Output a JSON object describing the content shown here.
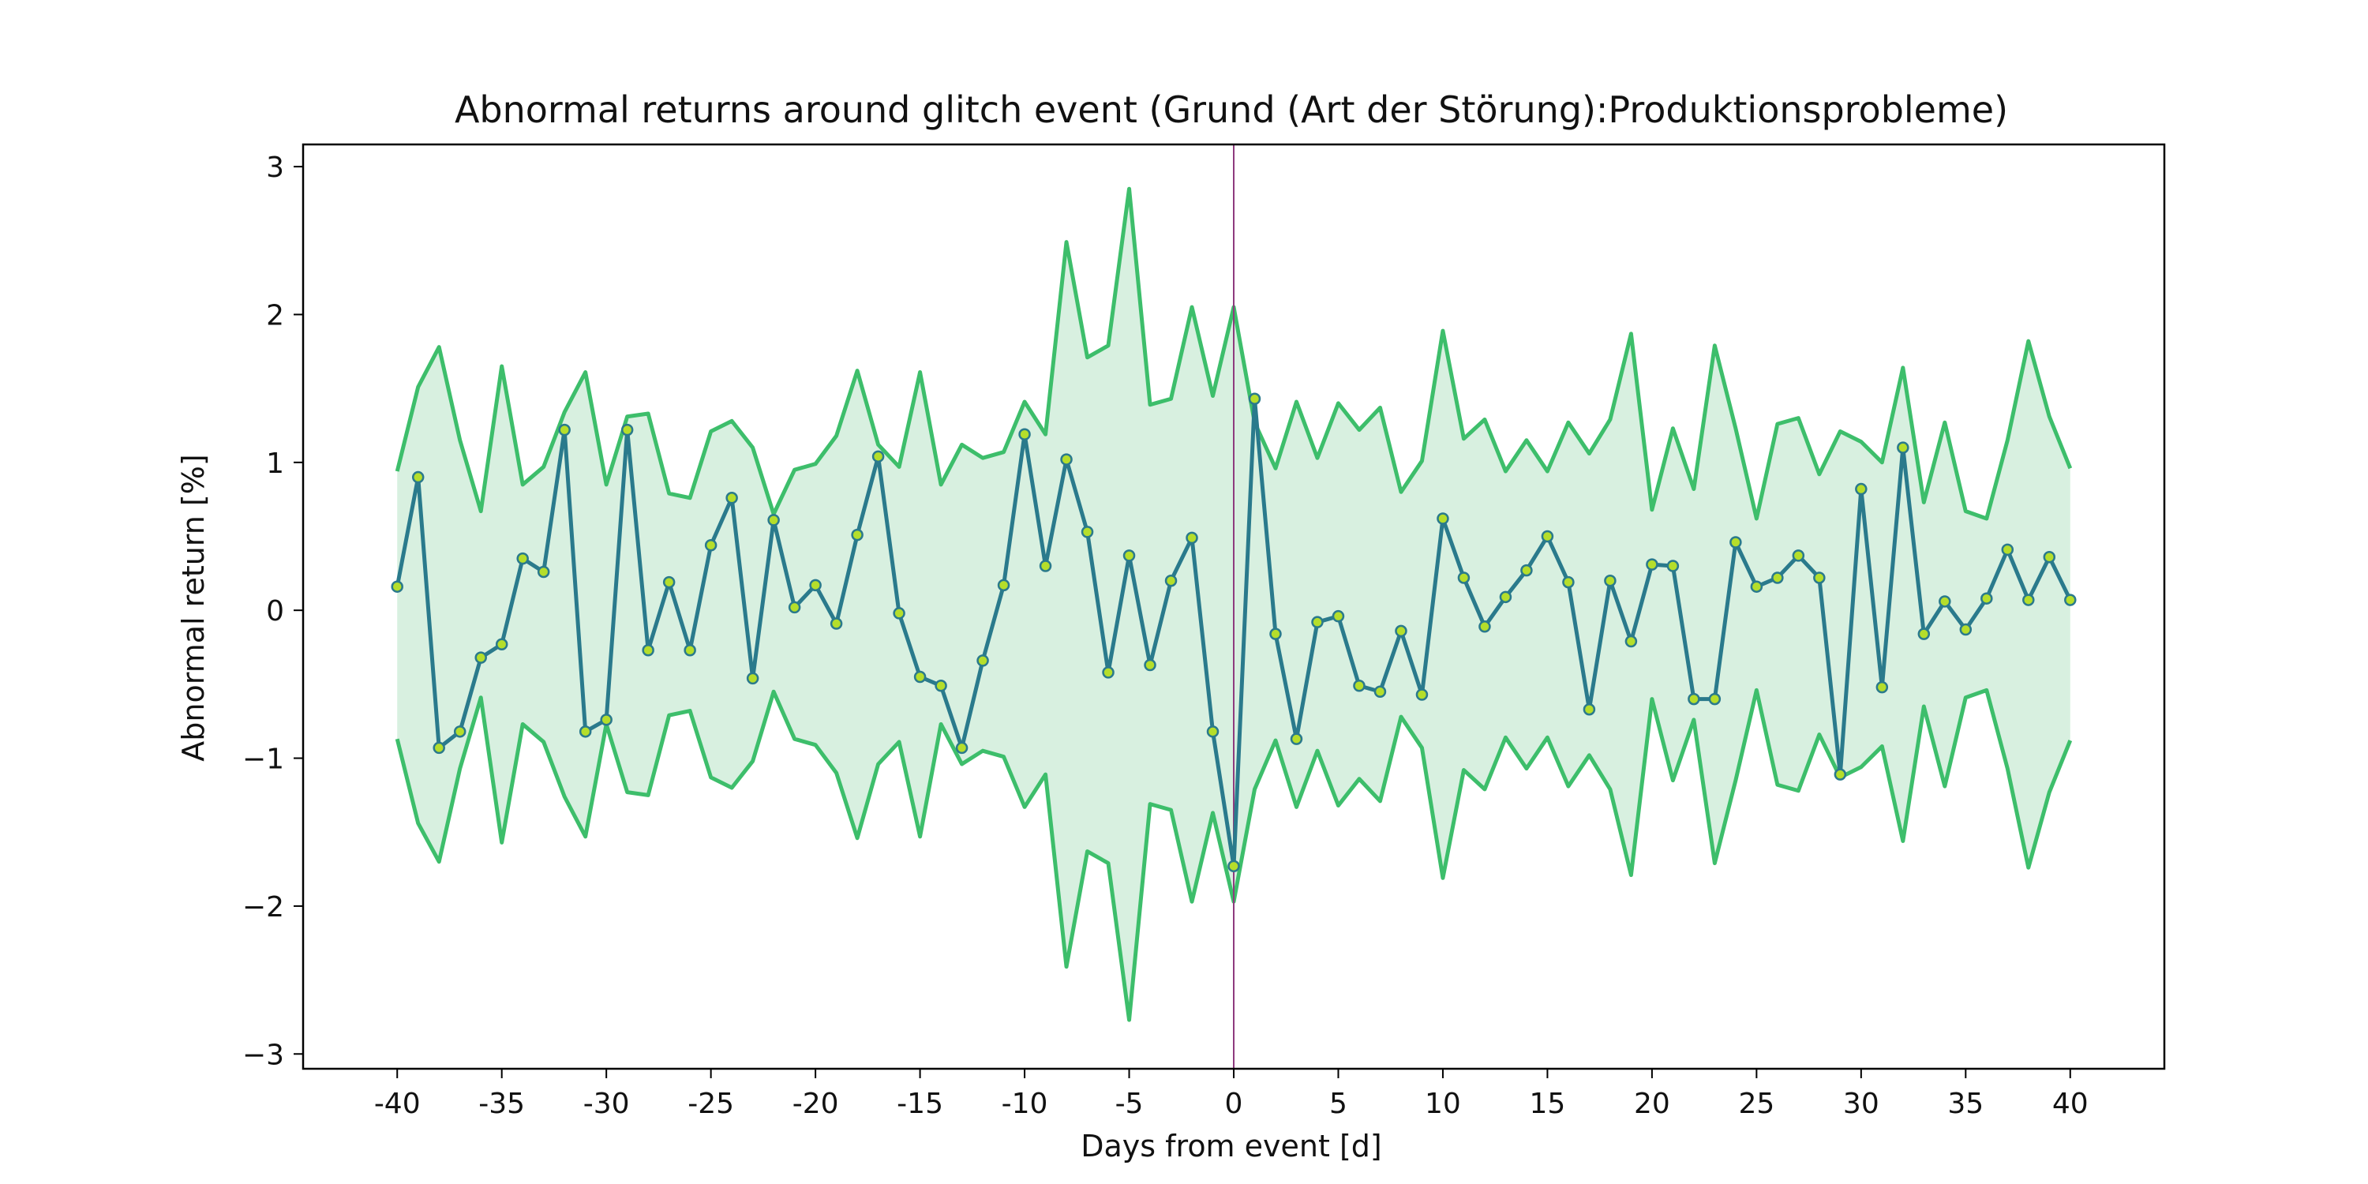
{
  "chart_data": {
    "type": "line",
    "title": "Abnormal returns around glitch event (Grund (Art der Störung):Produktionsprobleme)",
    "xlabel": "Days from event [d]",
    "ylabel": "Abnormal return [%]",
    "xlim": [
      -44.5,
      44.5
    ],
    "ylim": [
      -3.1,
      3.15
    ],
    "x_ticks": [
      -40,
      -35,
      -30,
      -25,
      -20,
      -15,
      -10,
      -5,
      0,
      5,
      10,
      15,
      20,
      25,
      30,
      35,
      40
    ],
    "x_tick_labels": [
      "-40",
      "-35",
      "-30",
      "-25",
      "-20",
      "-15",
      "-10",
      "-5",
      "0",
      "5",
      "10",
      "15",
      "20",
      "25",
      "30",
      "35",
      "40"
    ],
    "y_ticks": [
      -3,
      -2,
      -1,
      0,
      1,
      2,
      3
    ],
    "y_tick_labels": [
      "−3",
      "−2",
      "−1",
      "0",
      "1",
      "2",
      "3"
    ],
    "event_line_x": 0,
    "colors": {
      "mean_line": "#2a7a8c",
      "marker_fill": "#b5de2b",
      "band_line": "#3dbe6b",
      "band_fill": "#d8f0e0",
      "event_line": "#8e3b7e",
      "axes": "#000000"
    },
    "x": [
      -40,
      -39,
      -38,
      -37,
      -36,
      -35,
      -34,
      -33,
      -32,
      -31,
      -30,
      -29,
      -28,
      -27,
      -26,
      -25,
      -24,
      -23,
      -22,
      -21,
      -20,
      -19,
      -18,
      -17,
      -16,
      -15,
      -14,
      -13,
      -12,
      -11,
      -10,
      -9,
      -8,
      -7,
      -6,
      -5,
      -4,
      -3,
      -2,
      -1,
      0,
      1,
      2,
      3,
      4,
      5,
      6,
      7,
      8,
      9,
      10,
      11,
      12,
      13,
      14,
      15,
      16,
      17,
      18,
      19,
      20,
      21,
      22,
      23,
      24,
      25,
      26,
      27,
      28,
      29,
      30,
      31,
      32,
      33,
      34,
      35,
      36,
      37,
      38,
      39,
      40
    ],
    "series": [
      {
        "role": "mean",
        "values": [
          0.16,
          0.9,
          -0.93,
          -0.82,
          -0.32,
          -0.23,
          0.35,
          0.26,
          1.22,
          -0.82,
          -0.74,
          1.22,
          -0.27,
          0.19,
          -0.27,
          0.44,
          0.76,
          -0.46,
          0.61,
          0.02,
          0.17,
          -0.09,
          0.51,
          1.04,
          -0.02,
          -0.45,
          -0.51,
          -0.93,
          -0.34,
          0.17,
          1.19,
          0.3,
          1.02,
          0.53,
          -0.42,
          0.37,
          -0.37,
          0.2,
          0.49,
          -0.82,
          -1.73,
          1.43,
          -0.16,
          -0.87,
          -0.08,
          -0.04,
          -0.51,
          -0.55,
          -0.14,
          -0.57,
          0.62,
          0.22,
          -0.11,
          0.09,
          0.27,
          0.5,
          0.19,
          -0.67,
          0.2,
          -0.21,
          0.31,
          0.3,
          -0.6,
          -0.6,
          0.46,
          0.16,
          0.22,
          0.37,
          0.22,
          -1.11,
          0.82,
          -0.52,
          1.1,
          -0.16,
          0.06,
          -0.13,
          0.08,
          0.41,
          0.07,
          0.36,
          0.07
        ]
      },
      {
        "role": "upper",
        "values": [
          0.94,
          1.51,
          1.78,
          1.15,
          0.67,
          1.65,
          0.85,
          0.97,
          1.34,
          1.61,
          0.85,
          1.31,
          1.33,
          0.79,
          0.76,
          1.21,
          1.28,
          1.1,
          0.65,
          0.95,
          0.99,
          1.18,
          1.62,
          1.12,
          0.97,
          1.61,
          0.85,
          1.12,
          1.03,
          1.07,
          1.41,
          1.19,
          2.49,
          1.71,
          1.79,
          2.85,
          1.39,
          1.43,
          2.05,
          1.45,
          2.05,
          1.27,
          0.96,
          1.41,
          1.03,
          1.4,
          1.22,
          1.37,
          0.8,
          1.01,
          1.89,
          1.16,
          1.29,
          0.94,
          1.15,
          0.94,
          1.27,
          1.06,
          1.29,
          1.87,
          0.68,
          1.23,
          0.82,
          1.79,
          1.23,
          0.62,
          1.26,
          1.3,
          0.92,
          1.21,
          1.14,
          1.0,
          1.64,
          0.73,
          1.27,
          0.67,
          0.62,
          1.15,
          1.82,
          1.31,
          0.96
        ]
      },
      {
        "role": "lower",
        "values": [
          -0.87,
          -1.44,
          -1.7,
          -1.07,
          -0.59,
          -1.57,
          -0.77,
          -0.89,
          -1.26,
          -1.53,
          -0.77,
          -1.23,
          -1.25,
          -0.71,
          -0.68,
          -1.13,
          -1.2,
          -1.02,
          -0.55,
          -0.87,
          -0.91,
          -1.1,
          -1.54,
          -1.04,
          -0.89,
          -1.53,
          -0.77,
          -1.04,
          -0.95,
          -0.99,
          -1.33,
          -1.11,
          -2.41,
          -1.63,
          -1.71,
          -2.77,
          -1.31,
          -1.35,
          -1.97,
          -1.37,
          -1.97,
          -1.21,
          -0.88,
          -1.33,
          -0.95,
          -1.32,
          -1.14,
          -1.29,
          -0.72,
          -0.93,
          -1.81,
          -1.08,
          -1.21,
          -0.86,
          -1.07,
          -0.86,
          -1.19,
          -0.98,
          -1.21,
          -1.79,
          -0.6,
          -1.15,
          -0.74,
          -1.71,
          -1.15,
          -0.54,
          -1.18,
          -1.22,
          -0.84,
          -1.13,
          -1.06,
          -0.92,
          -1.56,
          -0.65,
          -1.19,
          -0.59,
          -0.54,
          -1.07,
          -1.74,
          -1.23,
          -0.88
        ]
      }
    ]
  }
}
